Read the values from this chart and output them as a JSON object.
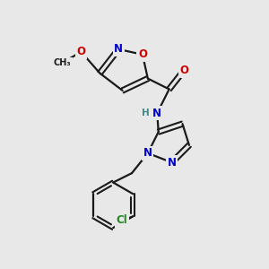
{
  "background_color": "#e8e8e8",
  "bond_color": "#1a1a1a",
  "atom_colors": {
    "N": "#0000cc",
    "O": "#cc0000",
    "Cl": "#228822",
    "H": "#448888",
    "C": "#1a1a1a"
  },
  "font_size_atom": 8.5,
  "figsize": [
    3.0,
    3.0
  ],
  "dpi": 100
}
